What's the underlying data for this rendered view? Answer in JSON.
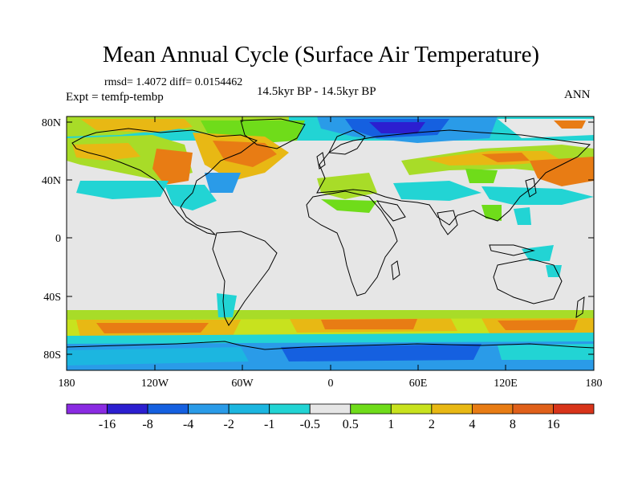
{
  "title": "Mean Annual Cycle (Surface Air Temperature)",
  "stats": "rmsd= 1.4072 diff= 0.0154462",
  "experiment": "Expt = temfp-tembp",
  "period": "14.5kyr BP - 14.5kyr BP",
  "season": "ANN",
  "lat_ticks": [
    "80N",
    "40N",
    "0",
    "40S",
    "80S"
  ],
  "lon_ticks": [
    "180",
    "120W",
    "60W",
    "0",
    "60E",
    "120E",
    "180"
  ],
  "colorbar": {
    "labels": [
      "-16",
      "-8",
      "-4",
      "-2",
      "-1",
      "-0.5",
      "0.5",
      "1",
      "2",
      "4",
      "8",
      "16"
    ],
    "colors": [
      "#8a2be2",
      "#2c1fd0",
      "#1560e0",
      "#2a9be8",
      "#1cb6e0",
      "#22d4d4",
      "#e6e6e6",
      "#6fdc1a",
      "#c8e21e",
      "#e8b814",
      "#e87c14",
      "#e0601a",
      "#d8341a"
    ]
  },
  "colors": {
    "ocean_neutral": "#e6e6e6",
    "warm": "#e8b814",
    "warmer": "#e87c14",
    "mild_warm": "#a8dc28",
    "cool": "#22d4d4",
    "cooler": "#2a9be8",
    "cold": "#1560e0",
    "coldest": "#2c1fd0"
  }
}
